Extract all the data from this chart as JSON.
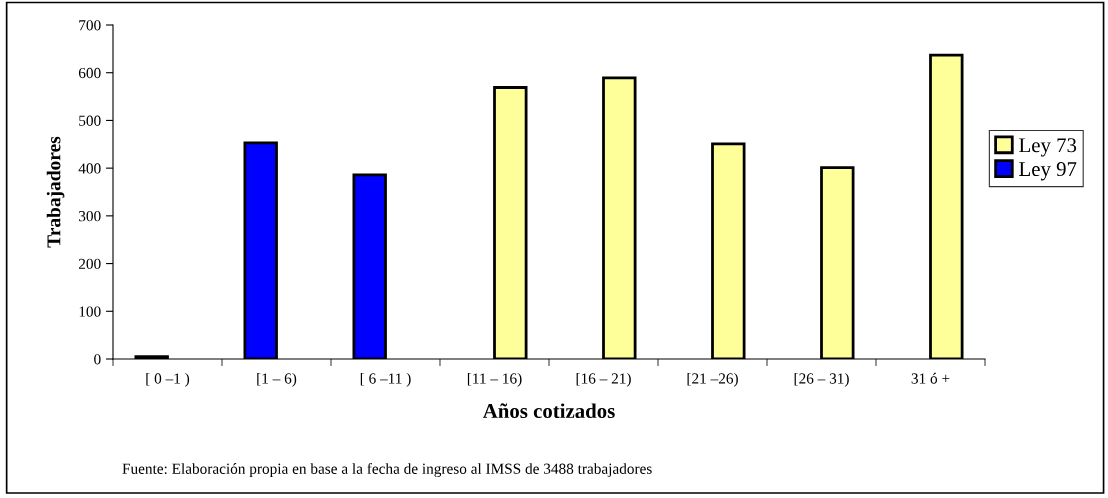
{
  "chart_data": {
    "type": "bar",
    "xlabel": "Años cotizados",
    "ylabel": "Trabajadores",
    "categories": [
      "[ 0 –1 )",
      "[1 – 6)",
      "[ 6 –11 )",
      "[11 – 16)",
      "[16 – 21)",
      "[21 –26)",
      "[26 – 31)",
      "31 ó +"
    ],
    "series": [
      {
        "name": "Ley 73",
        "color": "#ffff99",
        "values": [
          null,
          null,
          null,
          569,
          589,
          451,
          401,
          637
        ]
      },
      {
        "name": "Ley 97",
        "color": "#0000ff",
        "values": [
          5,
          453,
          386,
          null,
          null,
          null,
          null,
          null
        ]
      }
    ],
    "ylim": [
      0,
      700
    ],
    "yticks": [
      0,
      100,
      200,
      300,
      400,
      500,
      600,
      700
    ],
    "legend": "right",
    "annotations": [
      "Fuente: Elaboración propia en base a la fecha de ingreso al IMSS de 3488 trabajadores"
    ]
  }
}
